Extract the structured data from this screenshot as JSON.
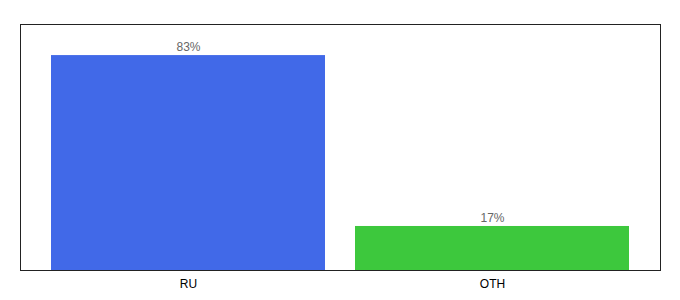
{
  "chart_data": {
    "type": "bar",
    "categories": [
      "RU",
      "OTH"
    ],
    "values": [
      83,
      17
    ],
    "value_labels": [
      "83%",
      "17%"
    ],
    "colors": [
      "#4169e8",
      "#3dc83d"
    ],
    "ylim": [
      0,
      95
    ],
    "tick_labels": "x",
    "data_labels": true,
    "grid": false
  }
}
